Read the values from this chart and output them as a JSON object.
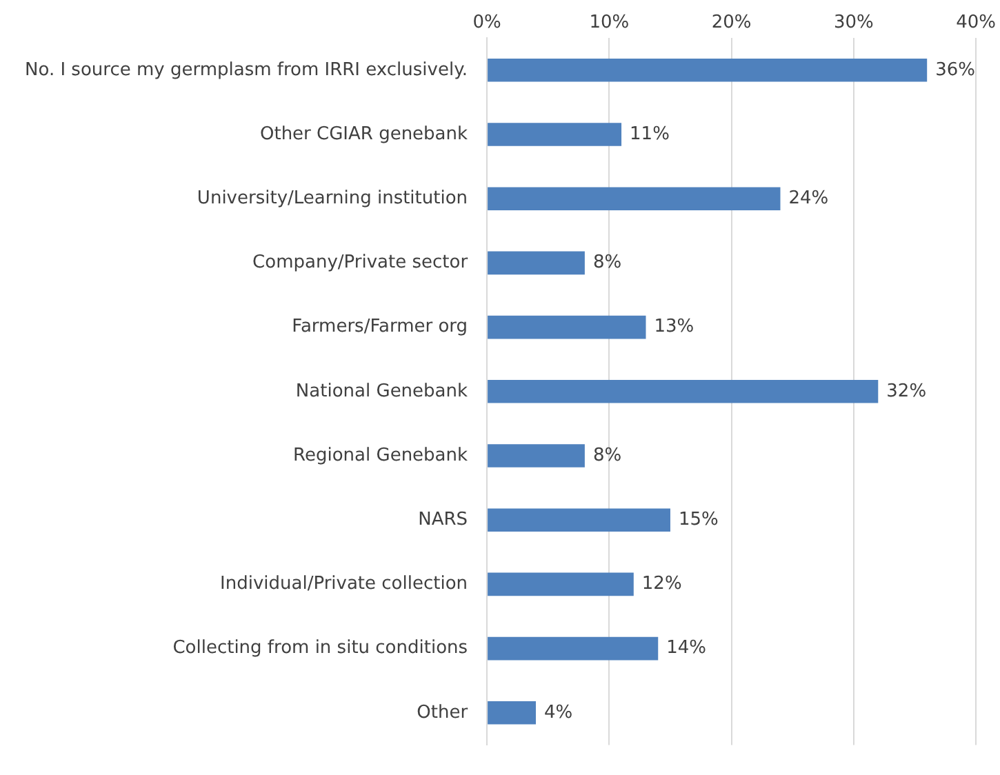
{
  "chart_data": {
    "type": "bar",
    "orientation": "horizontal",
    "categories": [
      "No. I source my germplasm from IRRI exclusively.",
      "Other CGIAR genebank",
      "University/Learning institution",
      "Company/Private sector",
      "Farmers/Farmer org",
      "National Genebank",
      "Regional Genebank",
      "NARS",
      "Individual/Private collection",
      "Collecting from in situ conditions",
      "Other"
    ],
    "values": [
      36,
      11,
      24,
      8,
      13,
      32,
      8,
      15,
      12,
      14,
      4
    ],
    "value_labels": [
      "36%",
      "11%",
      "24%",
      "8%",
      "13%",
      "32%",
      "8%",
      "15%",
      "12%",
      "14%",
      "4%"
    ],
    "color": "#4f81bd",
    "xlim": [
      0,
      40
    ],
    "xticks": [
      {
        "value": 0,
        "label": "0%"
      },
      {
        "value": 10,
        "label": "10%"
      },
      {
        "value": 20,
        "label": "20%"
      },
      {
        "value": 30,
        "label": "30%"
      },
      {
        "value": 40,
        "label": "40%"
      }
    ],
    "grid": "x",
    "legend": false
  }
}
